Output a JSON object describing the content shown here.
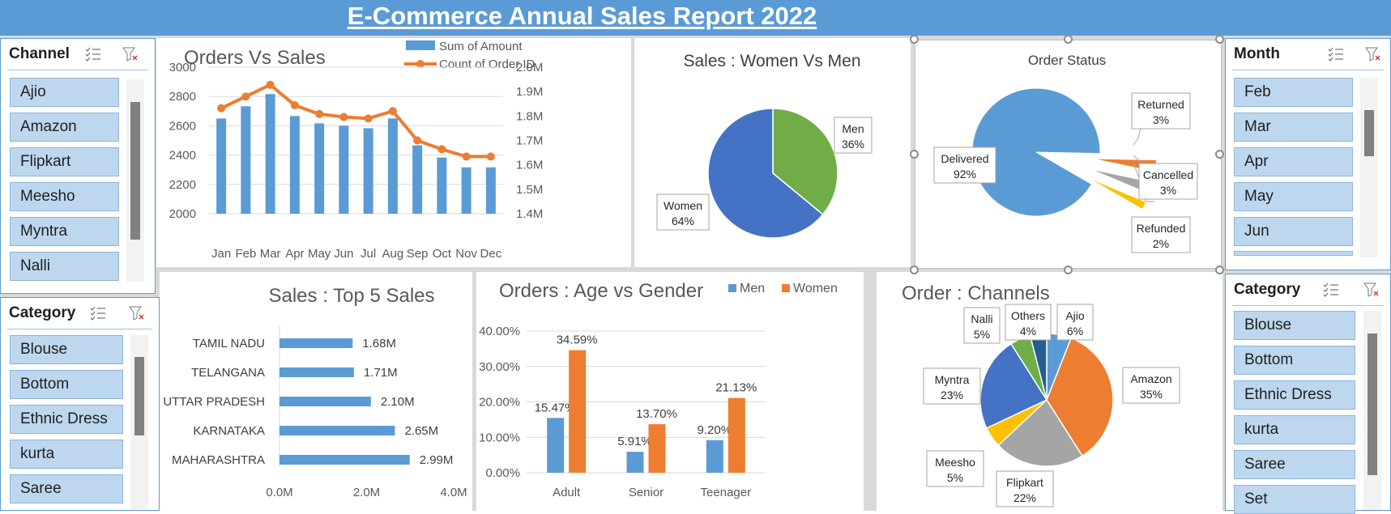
{
  "title": "E-Commerce Annual Sales Report 2022",
  "colors": {
    "accent": "#5b9bd5",
    "orange": "#ed7d31",
    "green": "#70ad47",
    "blue": "#4472c4",
    "gray": "#a5a5a5",
    "yellow": "#ffc000",
    "navy": "#255e91"
  },
  "slicers": {
    "channel": {
      "title": "Channel",
      "items": [
        "Ajio",
        "Amazon",
        "Flipkart",
        "Meesho",
        "Myntra",
        "Nalli"
      ]
    },
    "category_left": {
      "title": "Category",
      "items": [
        "Blouse",
        "Bottom",
        "Ethnic Dress",
        "kurta",
        "Saree"
      ]
    },
    "month": {
      "title": "Month",
      "items": [
        "Feb",
        "Mar",
        "Apr",
        "May",
        "Jun"
      ]
    },
    "category_right": {
      "title": "Category",
      "items": [
        "Blouse",
        "Bottom",
        "Ethnic Dress",
        "kurta",
        "Saree",
        "Set"
      ]
    }
  },
  "chart_data": [
    {
      "type": "bar",
      "title": "Orders Vs Sales",
      "categories": [
        "Jan",
        "Feb",
        "Mar",
        "Apr",
        "May",
        "Jun",
        "Jul",
        "Aug",
        "Sep",
        "Oct",
        "Nov",
        "Dec"
      ],
      "series": [
        {
          "name": "Sum of Amount",
          "axis": "right",
          "values": [
            1.79,
            1.84,
            1.89,
            1.8,
            1.77,
            1.76,
            1.75,
            1.79,
            1.68,
            1.63,
            1.59,
            1.59
          ]
        },
        {
          "name": "Count of Order ID",
          "type": "line",
          "axis": "left",
          "values": [
            2720,
            2800,
            2880,
            2740,
            2680,
            2660,
            2650,
            2700,
            2500,
            2440,
            2390,
            2390
          ]
        }
      ],
      "yticks_left": [
        "3000",
        "2800",
        "2600",
        "2400",
        "2200",
        "2000"
      ],
      "yticks_right": [
        "2.0M",
        "1.9M",
        "1.8M",
        "1.7M",
        "1.6M",
        "1.5M",
        "1.4M"
      ],
      "ylim_left": [
        2000,
        3000
      ],
      "ylim_right": [
        1.4,
        2.0
      ]
    },
    {
      "type": "pie",
      "title": "Sales : Women Vs Men",
      "slices": [
        {
          "name": "Men",
          "value": 36,
          "label": "Men",
          "pct": "36%"
        },
        {
          "name": "Women",
          "value": 64,
          "label": "Women",
          "pct": "64%"
        }
      ]
    },
    {
      "type": "pie",
      "title": "Order Status",
      "slices": [
        {
          "name": "Delivered",
          "value": 92,
          "label": "Delivered",
          "pct": "92%"
        },
        {
          "name": "Returned",
          "value": 3,
          "label": "Returned",
          "pct": "3%"
        },
        {
          "name": "Cancelled",
          "value": 3,
          "label": "Cancelled",
          "pct": "3%"
        },
        {
          "name": "Refunded",
          "value": 2,
          "label": "Refunded",
          "pct": "2%"
        }
      ]
    },
    {
      "type": "bar",
      "orientation": "horizontal",
      "title": "Sales : Top 5 Sales",
      "categories": [
        "TAMIL NADU",
        "TELANGANA",
        "UTTAR PRADESH",
        "KARNATAKA",
        "MAHARASHTRA"
      ],
      "values": [
        1.68,
        1.71,
        2.1,
        2.65,
        2.99
      ],
      "value_labels": [
        "1.68M",
        "1.71M",
        "2.10M",
        "2.65M",
        "2.99M"
      ],
      "xticks": [
        "0.0M",
        "2.0M",
        "4.0M"
      ],
      "xlim": [
        0,
        4
      ]
    },
    {
      "type": "bar",
      "title": "Orders : Age vs Gender",
      "categories": [
        "Adult",
        "Senior",
        "Teenager"
      ],
      "series": [
        {
          "name": "Men",
          "values": [
            15.47,
            5.91,
            9.2
          ],
          "labels": [
            "15.47%",
            "5.91%",
            "9.20%"
          ]
        },
        {
          "name": "Women",
          "values": [
            34.59,
            13.7,
            21.13
          ],
          "labels": [
            "34.59%",
            "13.70%",
            "21.13%"
          ]
        }
      ],
      "yticks": [
        "40.00%",
        "30.00%",
        "20.00%",
        "10.00%",
        "0.00%"
      ],
      "ylim": [
        0,
        40
      ]
    },
    {
      "type": "pie",
      "title": "Order : Channels",
      "slices": [
        {
          "name": "Ajio",
          "value": 6,
          "label": "Ajio",
          "pct": "6%"
        },
        {
          "name": "Amazon",
          "value": 35,
          "label": "Amazon",
          "pct": "35%"
        },
        {
          "name": "Flipkart",
          "value": 22,
          "label": "Flipkart",
          "pct": "22%"
        },
        {
          "name": "Meesho",
          "value": 5,
          "label": "Meesho",
          "pct": "5%"
        },
        {
          "name": "Myntra",
          "value": 23,
          "label": "Myntra",
          "pct": "23%"
        },
        {
          "name": "Nalli",
          "value": 5,
          "label": "Nalli",
          "pct": "5%"
        },
        {
          "name": "Others",
          "value": 4,
          "label": "Others",
          "pct": "4%"
        }
      ]
    }
  ]
}
